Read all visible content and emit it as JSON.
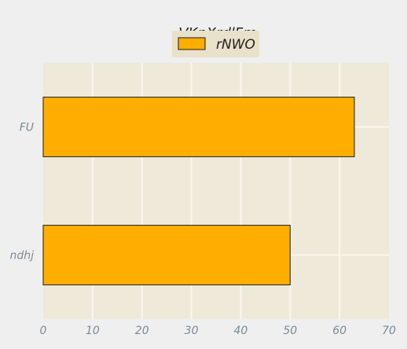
{
  "chart_data": {
    "type": "bar",
    "orientation": "horizontal",
    "title": "VKnXrdlFm",
    "categories": [
      "FU",
      "ndhj"
    ],
    "series": [
      {
        "name": "rNWO",
        "values": [
          63,
          50
        ]
      }
    ],
    "xlim": [
      0,
      70
    ],
    "xticks": [
      0,
      10,
      20,
      30,
      40,
      50,
      60,
      70
    ],
    "grid": true,
    "legend_position": "top-center"
  },
  "colors": {
    "background": "#efefef",
    "plot_background": "#efe9d9",
    "grid": "#fbf7ee",
    "bar_fill": "#ffae00",
    "bar_edge": "#1a1a1a",
    "legend_background": "#e9e1c9"
  }
}
